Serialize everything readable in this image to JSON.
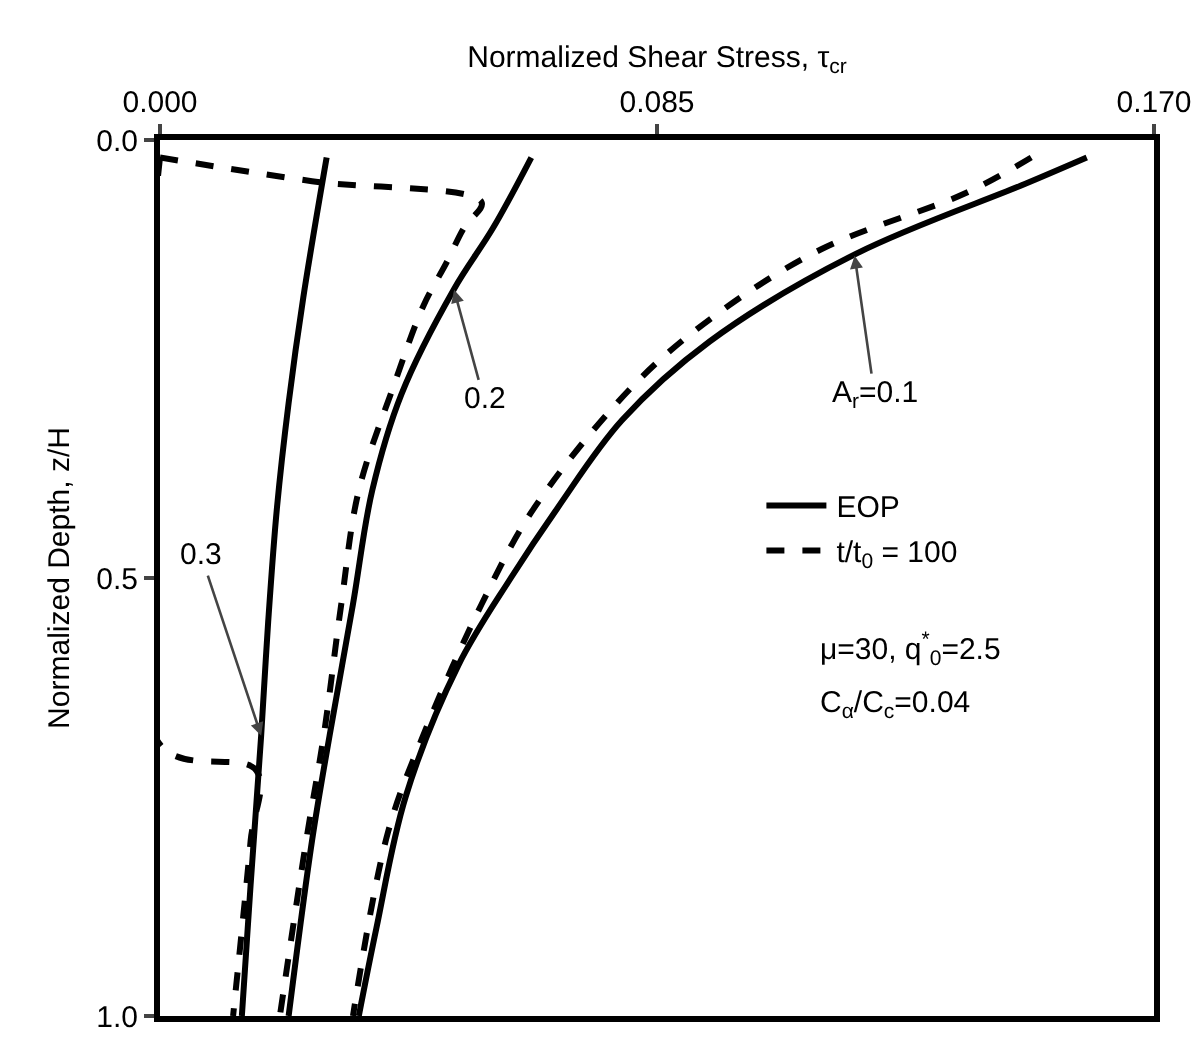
{
  "chart_data": {
    "type": "line",
    "xlabel": "Normalized Shear Stress, τ$_{cr}$",
    "ylabel": "Normalized Depth, z/H",
    "xlim": [
      0,
      0.17
    ],
    "xticks": [
      {
        "value": 0,
        "label": "0.000"
      },
      0.085,
      {
        "value": 0.17,
        "label": "0.170"
      }
    ],
    "ylim": [
      1,
      0
    ],
    "yticks": [
      {
        "value": 0,
        "label": "0.0"
      },
      0.5,
      {
        "value": 1,
        "label": "1.0"
      }
    ],
    "grid": false,
    "legend": "right",
    "marker": "none",
    "series": [
      {
        "name": "EOP",
        "color": "#000000",
        "line_style": "solid",
        "x": [
          0.1585,
          0.148,
          0.119,
          0.094,
          0.079,
          0.068,
          0.06,
          0.051,
          0.042,
          0.037,
          0.034
        ],
        "values": [
          0.02,
          0.05,
          0.13,
          0.23,
          0.32,
          0.42,
          0.5,
          0.6,
          0.75,
          0.9,
          1.0
        ]
      },
      {
        "name": "t/t$_{0}$ = 100",
        "color": "#000000",
        "line_style": "dashed",
        "x": [
          0.149,
          0.138,
          0.113,
          0.095,
          0.081,
          0.064,
          0.055,
          0.045,
          0.039,
          0.033
        ],
        "values": [
          0.02,
          0.06,
          0.125,
          0.2,
          0.28,
          0.42,
          0.53,
          0.68,
          0.79,
          1.0
        ]
      },
      {
        "color": "#000000",
        "line_style": "solid",
        "x": [
          0.0635,
          0.057,
          0.0503,
          0.0413,
          0.0363,
          0.033,
          0.029,
          0.026,
          0.022
        ],
        "values": [
          0.02,
          0.1,
          0.17,
          0.29,
          0.4,
          0.53,
          0.68,
          0.8,
          1.0
        ]
      },
      {
        "color": "#000000",
        "line_style": "dashed",
        "x": [
          0,
          0.026,
          0.055,
          0.052,
          0.049,
          0.045,
          0.04,
          0.034,
          0.031,
          0.028,
          0.025,
          0.0205
        ],
        "values": [
          0.02,
          0.047,
          0.071,
          0.1,
          0.14,
          0.19,
          0.28,
          0.4,
          0.53,
          0.68,
          0.8,
          1.0
        ]
      },
      {
        "color": "#000000",
        "line_style": "solid",
        "x": [
          0.0285,
          0.0245,
          0.022,
          0.02,
          0.0185,
          0.0173,
          0.0155,
          0.014
        ],
        "values": [
          0.02,
          0.18,
          0.3,
          0.42,
          0.55,
          0.68,
          0.85,
          1.0
        ]
      },
      {
        "color": "#000000",
        "line_style": "dashed",
        "x": [
          0,
          0,
          0.0165,
          0.0155,
          0.0125
        ],
        "values": [
          0.02,
          0.69,
          0.72,
          0.8,
          1.0
        ]
      }
    ],
    "annotations": [
      {
        "text": "A$_{r}$=0.1",
        "x": 0.1188,
        "y": 0.132
      },
      {
        "text": "0.2",
        "x": 0.0503,
        "y": 0.171
      },
      {
        "text": "0.3",
        "x": 0.0173,
        "y": 0.68
      },
      "μ=30, q$^{*}$$_{0}$=2.5",
      "C$_{α}$/C$_{c}$=0.04"
    ]
  }
}
